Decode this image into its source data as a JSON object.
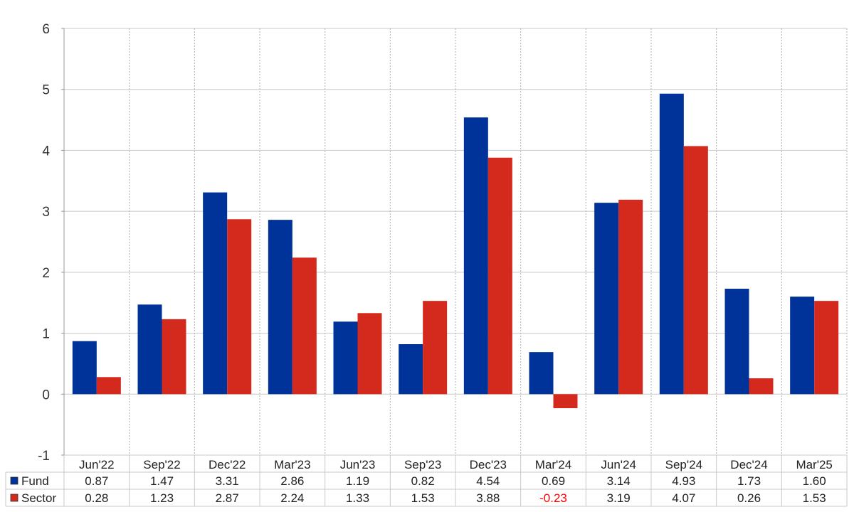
{
  "chart_data": {
    "type": "bar",
    "categories": [
      "Jun'22",
      "Sep'22",
      "Dec'22",
      "Mar'23",
      "Jun'23",
      "Sep'23",
      "Dec'23",
      "Mar'24",
      "Jun'24",
      "Sep'24",
      "Dec'24",
      "Mar'25"
    ],
    "series": [
      {
        "name": "Fund",
        "color": "#003399",
        "values": [
          0.87,
          1.47,
          3.31,
          2.86,
          1.19,
          0.82,
          4.54,
          0.69,
          3.14,
          4.93,
          1.73,
          1.6
        ],
        "labels": [
          "0.87",
          "1.47",
          "3.31",
          "2.86",
          "1.19",
          "0.82",
          "4.54",
          "0.69",
          "3.14",
          "4.93",
          "1.73",
          "1.60"
        ]
      },
      {
        "name": "Sector",
        "color": "#d42a1e",
        "values": [
          0.28,
          1.23,
          2.87,
          2.24,
          1.33,
          1.53,
          3.88,
          -0.23,
          3.19,
          4.07,
          0.26,
          1.53
        ],
        "labels": [
          "0.28",
          "1.23",
          "2.87",
          "2.24",
          "1.33",
          "1.53",
          "3.88",
          "-0.23",
          "3.19",
          "4.07",
          "0.26",
          "1.53"
        ]
      }
    ],
    "ylim": [
      -1,
      6
    ],
    "yticks": [
      "-1",
      "0",
      "1",
      "2",
      "3",
      "4",
      "5",
      "6"
    ],
    "negative_value_color": "#ff0000",
    "grid": true,
    "legend": "data table below chart",
    "title": "",
    "xlabel": "",
    "ylabel": ""
  }
}
